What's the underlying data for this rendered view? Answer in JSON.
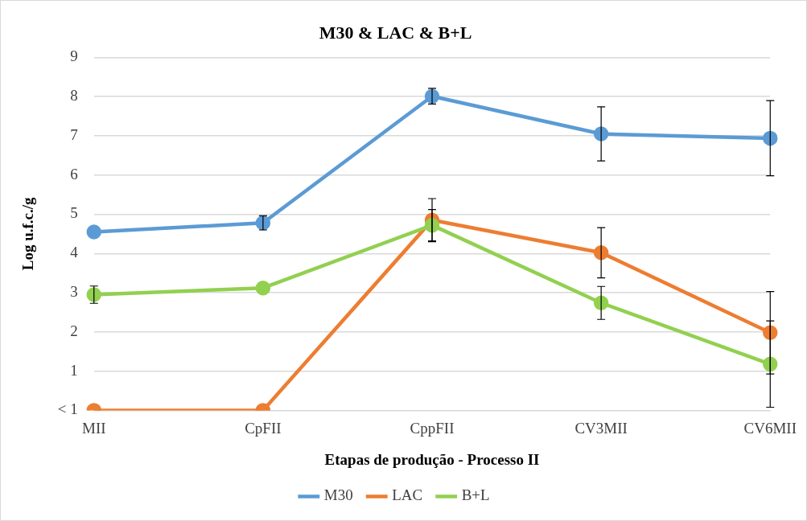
{
  "chart_data": {
    "type": "line",
    "title": "M30 & LAC & B+L",
    "xlabel": "Etapas de produção - Processo II",
    "ylabel": "Log u.f.c./g",
    "categories": [
      "MII",
      "CpFII",
      "CppFII",
      "CV3MII",
      "CV6MII"
    ],
    "series": [
      {
        "name": "M30",
        "color": "#5b9bd5",
        "values": [
          4.55,
          4.78,
          8.01,
          7.05,
          6.94
        ],
        "errors": [
          null,
          0.18,
          0.2,
          0.69,
          0.96
        ]
      },
      {
        "name": "LAC",
        "color": "#ed7d31",
        "values": [
          0,
          0,
          4.85,
          4.02,
          1.98
        ],
        "errors": [
          null,
          null,
          0.55,
          0.64,
          1.05
        ]
      },
      {
        "name": "B+L",
        "color": "#92d050",
        "values": [
          2.95,
          3.12,
          4.72,
          2.74,
          1.18
        ],
        "errors": [
          0.22,
          null,
          0.4,
          0.42,
          1.1
        ]
      }
    ],
    "ylim": [
      0,
      9
    ],
    "yticks": [
      {
        "value": 0,
        "label": "< 1"
      },
      1,
      2,
      3,
      4,
      5,
      6,
      7,
      8,
      9
    ],
    "grid": "y",
    "legend": "bottom",
    "marker": "circle",
    "line_style": "solid"
  }
}
